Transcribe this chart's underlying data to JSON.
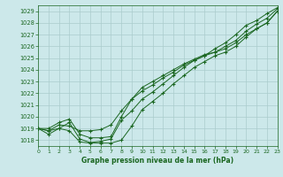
{
  "title": "Graphe pression niveau de la mer (hPa)",
  "bg_color": "#cce8ea",
  "grid_color": "#aacccc",
  "line_color": "#1a6620",
  "xlim": [
    0,
    23
  ],
  "ylim": [
    1017.5,
    1029.5
  ],
  "yticks": [
    1018,
    1019,
    1020,
    1021,
    1022,
    1023,
    1024,
    1025,
    1026,
    1027,
    1028,
    1029
  ],
  "xticks": [
    0,
    1,
    2,
    3,
    4,
    5,
    6,
    7,
    8,
    9,
    10,
    11,
    12,
    13,
    14,
    15,
    16,
    17,
    18,
    19,
    20,
    21,
    22,
    23
  ],
  "series1_x": [
    0,
    1,
    2,
    3,
    4,
    5,
    6,
    7,
    8,
    9,
    10,
    11,
    12,
    13,
    14,
    15,
    16,
    17,
    18,
    19,
    20,
    21,
    22,
    23
  ],
  "series1_y": [
    1019.0,
    1019.0,
    1019.5,
    1019.8,
    1018.5,
    1018.2,
    1018.2,
    1018.3,
    1020.0,
    1021.5,
    1022.2,
    1022.7,
    1023.3,
    1023.8,
    1024.4,
    1024.8,
    1025.2,
    1025.5,
    1026.0,
    1026.5,
    1027.3,
    1027.9,
    1028.4,
    1029.2
  ],
  "series2_x": [
    0,
    1,
    2,
    3,
    4,
    5,
    6,
    7,
    8,
    9,
    10,
    11,
    12,
    13,
    14,
    15,
    16,
    17,
    18,
    19,
    20,
    21,
    22,
    23
  ],
  "series2_y": [
    1019.0,
    1018.8,
    1019.0,
    1019.5,
    1018.1,
    1017.8,
    1017.9,
    1018.1,
    1019.7,
    1020.5,
    1021.5,
    1022.1,
    1022.8,
    1023.5,
    1024.2,
    1024.8,
    1025.2,
    1025.8,
    1026.3,
    1027.0,
    1027.8,
    1028.2,
    1028.8,
    1029.3
  ],
  "series3_x": [
    0,
    1,
    2,
    3,
    4,
    5,
    6,
    7,
    8,
    9,
    10,
    11,
    12,
    13,
    14,
    15,
    16,
    17,
    18,
    19,
    20,
    21,
    22,
    23
  ],
  "series3_y": [
    1019.0,
    1018.8,
    1019.3,
    1019.2,
    1018.8,
    1018.8,
    1018.9,
    1019.3,
    1020.5,
    1021.5,
    1022.5,
    1023.0,
    1023.5,
    1024.0,
    1024.5,
    1024.9,
    1025.3,
    1025.5,
    1025.8,
    1026.3,
    1027.0,
    1027.5,
    1028.0,
    1029.0
  ],
  "series_low_x": [
    0,
    1,
    2,
    3,
    4,
    5,
    6,
    7,
    8,
    9,
    10,
    11,
    12,
    13,
    14,
    15,
    16,
    17,
    18,
    19,
    20,
    21,
    22,
    23
  ],
  "series_low_y": [
    1019.0,
    1018.5,
    1019.0,
    1018.8,
    1017.85,
    1017.75,
    1017.75,
    1017.75,
    1018.0,
    1019.2,
    1020.6,
    1021.3,
    1022.0,
    1022.8,
    1023.5,
    1024.2,
    1024.7,
    1025.2,
    1025.5,
    1026.0,
    1026.8,
    1027.5,
    1028.0,
    1029.0
  ]
}
